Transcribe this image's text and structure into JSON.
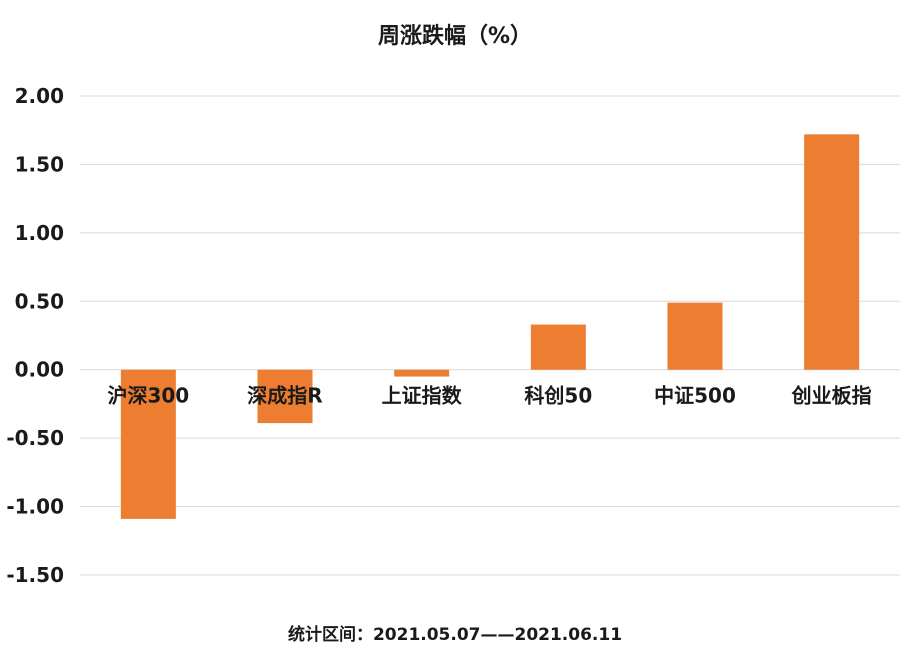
{
  "chart_data": {
    "type": "bar",
    "title": "周涨跌幅（%）",
    "categories": [
      "沪深300",
      "深成指R",
      "上证指数",
      "科创50",
      "中证500",
      "创业板指"
    ],
    "values": [
      -1.09,
      -0.39,
      -0.05,
      0.33,
      0.49,
      1.72
    ],
    "ylim": [
      -1.5,
      2.0
    ],
    "yticks": [
      "2.00",
      "1.50",
      "1.00",
      "0.50",
      "0.00",
      "-0.50",
      "-1.00",
      "-1.50"
    ],
    "grid": true,
    "legend": "none",
    "bar_color": "#ED7D31",
    "grid_color": "#D9D9D9",
    "text_color": "#1A1A1A",
    "footnote": "统计区间：2021.05.07——2021.06.11"
  }
}
